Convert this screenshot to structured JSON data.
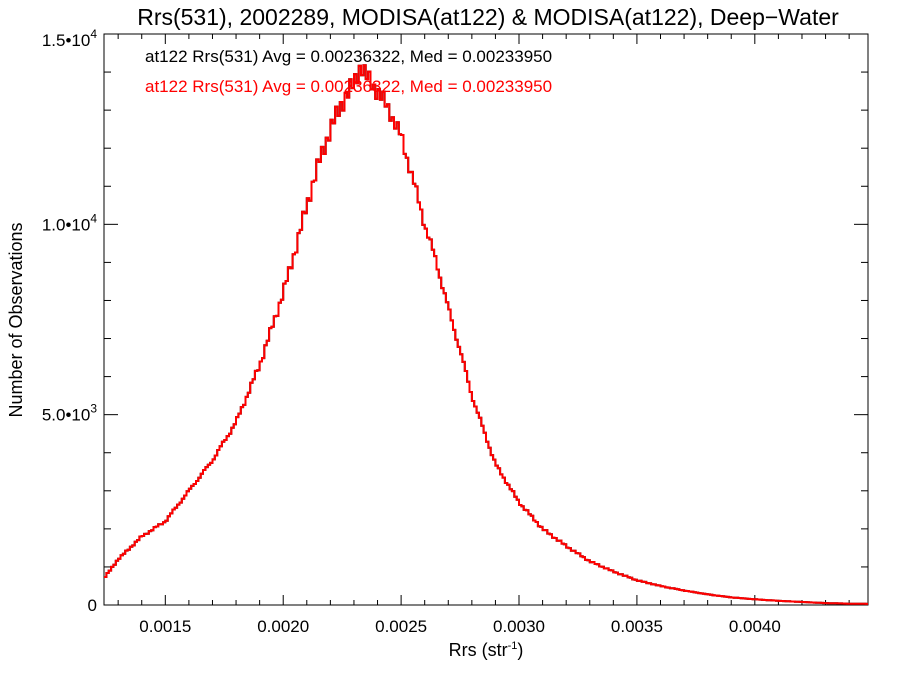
{
  "chart_data": {
    "type": "line",
    "title": "Rrs(531), 2002289, MODISA(at122) & MODISA(at122), Deep−Water",
    "xlabel": "Rrs (str",
    "xlabel_sup": "-1",
    "xlabel_close": ")",
    "ylabel": "Number of Observations",
    "xlim": [
      0.00124,
      0.00448
    ],
    "ylim": [
      0,
      15000
    ],
    "x_ticks": [
      {
        "value": 0.0015,
        "label": "0.0015"
      },
      {
        "value": 0.002,
        "label": "0.0020"
      },
      {
        "value": 0.0025,
        "label": "0.0025"
      },
      {
        "value": 0.003,
        "label": "0.0030"
      },
      {
        "value": 0.0035,
        "label": "0.0035"
      },
      {
        "value": 0.004,
        "label": "0.0040"
      }
    ],
    "y_ticks": [
      {
        "value": 0,
        "label": "0",
        "sup": ""
      },
      {
        "value": 5000,
        "label": "5.0•10",
        "sup": "3"
      },
      {
        "value": 10000,
        "label": "1.0•10",
        "sup": "4"
      },
      {
        "value": 15000,
        "label": "1.5•10",
        "sup": "4"
      }
    ],
    "grid": false,
    "annotations": [
      {
        "text": "at122 Rrs(531) Avg = 0.00236322, Med = 0.00233950",
        "color": "#000000"
      },
      {
        "text": "at122 Rrs(531) Avg = 0.00236322, Med = 0.00233950",
        "color": "#ff0000"
      }
    ],
    "series": [
      {
        "color": "#000000",
        "x": [
          0.00124,
          0.0013,
          0.0014,
          0.0015,
          0.0016,
          0.0017,
          0.0018,
          0.0019,
          0.002,
          0.00205,
          0.0021,
          0.00215,
          0.0022,
          0.00225,
          0.0023,
          0.00233,
          0.00235,
          0.0024,
          0.00245,
          0.0025,
          0.00255,
          0.0026,
          0.00265,
          0.0027,
          0.00275,
          0.0028,
          0.00285,
          0.0029,
          0.003,
          0.0031,
          0.0032,
          0.0033,
          0.0034,
          0.0035,
          0.0036,
          0.0037,
          0.0038,
          0.0039,
          0.004,
          0.0041,
          0.0042,
          0.0043,
          0.0044,
          0.00448
        ],
        "y": [
          700,
          1200,
          1800,
          2200,
          3000,
          3800,
          4800,
          6300,
          8200,
          9300,
          10500,
          11600,
          12500,
          13200,
          13700,
          14200,
          13900,
          13500,
          13000,
          12300,
          11200,
          10000,
          9000,
          7800,
          6700,
          5500,
          4600,
          3700,
          2700,
          2000,
          1550,
          1150,
          880,
          650,
          500,
          380,
          280,
          200,
          150,
          110,
          80,
          50,
          35,
          30
        ]
      },
      {
        "color": "#ff0000",
        "x": [
          0.00124,
          0.0013,
          0.0014,
          0.0015,
          0.0016,
          0.0017,
          0.0018,
          0.0019,
          0.002,
          0.00205,
          0.0021,
          0.00215,
          0.0022,
          0.00225,
          0.0023,
          0.00233,
          0.00235,
          0.0024,
          0.00245,
          0.0025,
          0.00255,
          0.0026,
          0.00265,
          0.0027,
          0.00275,
          0.0028,
          0.00285,
          0.0029,
          0.003,
          0.0031,
          0.0032,
          0.0033,
          0.0034,
          0.0035,
          0.0036,
          0.0037,
          0.0038,
          0.0039,
          0.004,
          0.0041,
          0.0042,
          0.0043,
          0.0044,
          0.00448
        ],
        "y": [
          700,
          1200,
          1800,
          2200,
          3000,
          3800,
          4800,
          6300,
          8200,
          9300,
          10500,
          11600,
          12500,
          13200,
          13700,
          14200,
          13900,
          13500,
          13000,
          12300,
          11200,
          10000,
          9000,
          7800,
          6700,
          5500,
          4600,
          3700,
          2700,
          2000,
          1550,
          1150,
          880,
          650,
          500,
          380,
          280,
          200,
          150,
          110,
          80,
          50,
          35,
          30
        ]
      }
    ]
  }
}
